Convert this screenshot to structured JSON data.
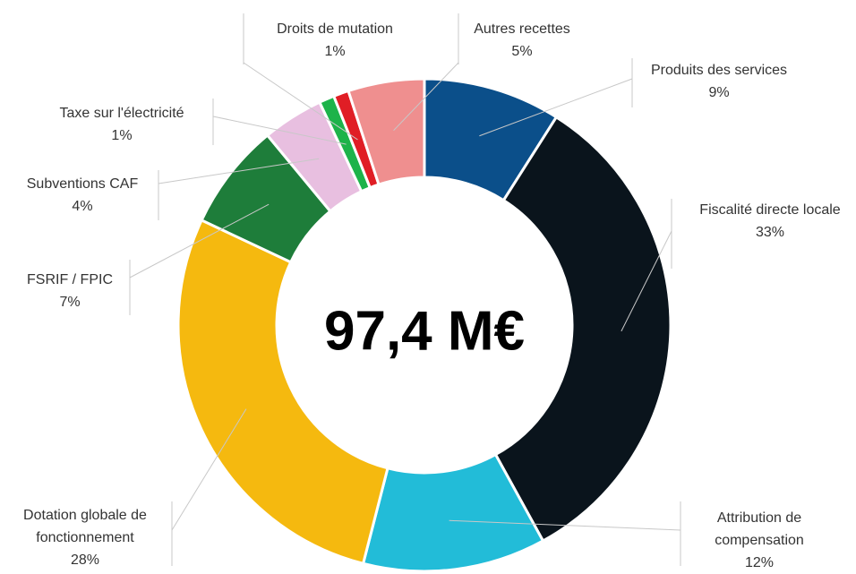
{
  "chart_data": {
    "type": "donut",
    "annotation": "97,4 M€",
    "categories": [
      "Produits des services",
      "Fiscalité directe locale",
      "Attribution de compensation",
      "Dotation globale de fonctionnement",
      "FSRIF / FPIC",
      "Subventions CAF",
      "Taxe sur l'électricité",
      "Droits de mutation",
      "Autres recettes"
    ],
    "values": [
      9,
      33,
      12,
      28,
      7,
      4,
      1,
      1,
      5
    ],
    "value_labels": [
      "9%",
      "33%",
      "12%",
      "28%",
      "7%",
      "4%",
      "1%",
      "1%",
      "5%"
    ],
    "colors": [
      "#0b4f8a",
      "#0a141c",
      "#22bcd8",
      "#f5b90f",
      "#1e7d3a",
      "#e8bfe0",
      "#1db34a",
      "#e01e25",
      "#ef8f8f"
    ]
  }
}
